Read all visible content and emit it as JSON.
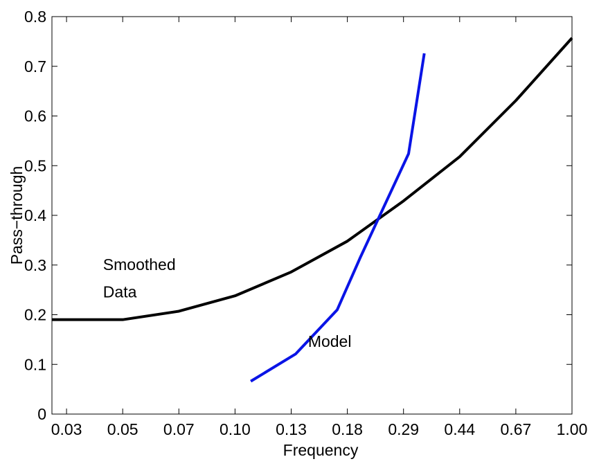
{
  "chart_data": {
    "type": "line",
    "xlabel": "Frequency",
    "ylabel": "Pass−through",
    "xlim": [
      0.74,
      10
    ],
    "xticks": [
      {
        "value": 1,
        "label": "0.03"
      },
      {
        "value": 2,
        "label": "0.05"
      },
      {
        "value": 3,
        "label": "0.07"
      },
      {
        "value": 4,
        "label": "0.10"
      },
      {
        "value": 5,
        "label": "0.13"
      },
      {
        "value": 6,
        "label": "0.18"
      },
      {
        "value": 7,
        "label": "0.29"
      },
      {
        "value": 8,
        "label": "0.44"
      },
      {
        "value": 9,
        "label": "0.67"
      },
      {
        "value": 10,
        "label": "1.00"
      }
    ],
    "ylim": [
      0,
      0.8
    ],
    "yticks": [
      0,
      0.1,
      0.2,
      0.3,
      0.4,
      0.5,
      0.6,
      0.7,
      0.8
    ],
    "grid": false,
    "series": [
      {
        "color": "#000000",
        "x": [
          0.74,
          2,
          3,
          4,
          5,
          6,
          7,
          8,
          9,
          10
        ],
        "values": [
          0.19,
          0.19,
          0.207,
          0.238,
          0.286,
          0.348,
          0.429,
          0.518,
          0.631,
          0.757
        ]
      },
      {
        "color": "#0a14e6",
        "x": [
          4.28,
          5.08,
          5.82,
          6.23,
          7.09,
          7.37
        ],
        "values": [
          0.066,
          0.121,
          0.21,
          0.315,
          0.524,
          0.726
        ]
      }
    ],
    "annotations": [
      {
        "text": "Smoothed",
        "x": 1.65,
        "y": 0.29
      },
      {
        "text": "Data",
        "x": 1.65,
        "y": 0.235
      },
      {
        "text": "Model",
        "x": 5.3,
        "y": 0.135
      }
    ]
  }
}
